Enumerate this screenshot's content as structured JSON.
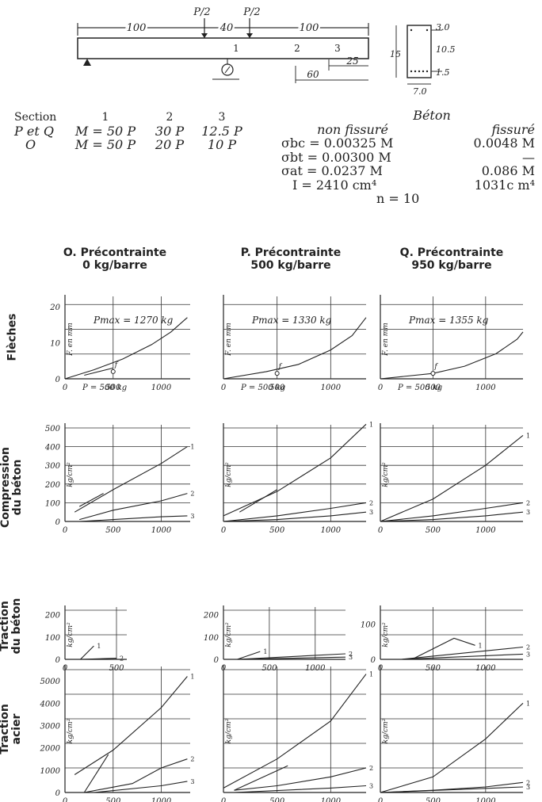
{
  "beam": {
    "dims": [
      "100",
      "40",
      "100"
    ],
    "loads": [
      "P/2",
      "P/2"
    ],
    "sections": [
      "1",
      "2",
      "3"
    ],
    "offsets": [
      "25",
      "60"
    ],
    "xsection": {
      "height": "15",
      "width": "7.0",
      "dims": [
        "3.0",
        "10.5",
        "1.5"
      ]
    }
  },
  "section_table": {
    "header": [
      "Section",
      "1",
      "2",
      "3"
    ],
    "rows": [
      [
        "P et Q",
        "M = 50 P",
        "30 P",
        "12.5 P"
      ],
      [
        "O",
        "M = 50 P",
        "20 P",
        "10 P"
      ]
    ]
  },
  "beton": {
    "title": "Béton",
    "col_a": "non fissuré",
    "col_b": "fissuré",
    "rows": [
      [
        "σbc = 0.00325 M",
        "0.0048 M"
      ],
      [
        "σbt = 0.00300 M",
        "—"
      ],
      [
        "σat = 0.0237 M",
        "0.086 M"
      ],
      [
        "I = 2410 cm⁴",
        "1031c m⁴"
      ]
    ],
    "n": "n = 10"
  },
  "columns": [
    {
      "title": "O. Précontrainte",
      "sub": "0 kg/barre"
    },
    {
      "title": "P. Précontrainte",
      "sub": "500 kg/barre"
    },
    {
      "title": "Q. Précontrainte",
      "sub": "950 kg/barre"
    }
  ],
  "row_labels": [
    "Flèches",
    "Compression du béton",
    "Traction du béton",
    "Traction acier"
  ],
  "chart_data": [
    {
      "type": "line",
      "group": "Flèches",
      "panels": [
        {
          "annotation": "Pmax = 1270 kg",
          "ylabel": "F. en mm",
          "xlabel": "P = 500 kg",
          "point_label": "f",
          "yticks": [
            "0",
            "10",
            "20"
          ],
          "xticks": [
            "0",
            "500",
            "1000"
          ],
          "xlim": [
            0,
            1300
          ],
          "ylim": [
            0,
            22
          ],
          "series": [
            {
              "name": "",
              "x": [
                0,
                300,
                600,
                900,
                1100,
                1270
              ],
              "y": [
                0,
                2.5,
                5.5,
                9.5,
                13,
                17
              ]
            },
            {
              "name": "",
              "x": [
                200,
                500
              ],
              "y": [
                1,
                3
              ]
            }
          ]
        },
        {
          "annotation": "Pmax = 1330 kg",
          "ylabel": "F. en mm",
          "xlabel": "P = 500 kg",
          "point_label": "f",
          "yticks": [],
          "xticks": [
            "0",
            "500",
            "1000"
          ],
          "xlim": [
            0,
            1330
          ],
          "ylim": [
            0,
            22
          ],
          "series": [
            {
              "name": "",
              "x": [
                0,
                400,
                700,
                1000,
                1200,
                1330
              ],
              "y": [
                0,
                2,
                4,
                8,
                12,
                17
              ]
            }
          ]
        },
        {
          "annotation": "Pmax = 1355 kg",
          "ylabel": "F. en mm",
          "xlabel": "P = 500 kg",
          "point_label": "f",
          "yticks": [],
          "xticks": [
            "0",
            "500",
            "1000"
          ],
          "xlim": [
            0,
            1355
          ],
          "ylim": [
            0,
            22
          ],
          "series": [
            {
              "name": "",
              "x": [
                0,
                500,
                800,
                1100,
                1300,
                1355
              ],
              "y": [
                0,
                1.5,
                3.5,
                7,
                11,
                13
              ]
            }
          ]
        }
      ]
    },
    {
      "type": "line",
      "group": "Compression du béton",
      "panels": [
        {
          "ylabel": "kg/cm²",
          "yticks": [
            "0",
            "100",
            "200",
            "300",
            "400",
            "500"
          ],
          "xticks": [
            "0",
            "500",
            "1000"
          ],
          "xlim": [
            0,
            1300
          ],
          "ylim": [
            0,
            500
          ],
          "series": [
            {
              "name": "1",
              "x": [
                100,
                500,
                1000,
                1270
              ],
              "y": [
                50,
                170,
                310,
                400
              ]
            },
            {
              "name": "2",
              "x": [
                150,
                500,
                1000,
                1270
              ],
              "y": [
                10,
                60,
                110,
                150
              ]
            },
            {
              "name": "3",
              "x": [
                150,
                500,
                1000,
                1270
              ],
              "y": [
                0,
                10,
                25,
                30
              ]
            },
            {
              "name": "",
              "x": [
                150,
                400
              ],
              "y": [
                80,
                150
              ]
            }
          ]
        },
        {
          "ylabel": "kg/cm²",
          "yticks": [],
          "xticks": [
            "0",
            "500",
            "1000"
          ],
          "xlim": [
            0,
            1330
          ],
          "ylim": [
            0,
            500
          ],
          "series": [
            {
              "name": "1",
              "x": [
                0,
                500,
                1000,
                1330
              ],
              "y": [
                30,
                160,
                340,
                520
              ]
            },
            {
              "name": "2",
              "x": [
                0,
                500,
                1000,
                1330
              ],
              "y": [
                0,
                30,
                70,
                100
              ]
            },
            {
              "name": "3",
              "x": [
                0,
                500,
                1000,
                1330
              ],
              "y": [
                0,
                10,
                30,
                50
              ]
            },
            {
              "name": "",
              "x": [
                150,
                500
              ],
              "y": [
                50,
                170
              ]
            }
          ]
        },
        {
          "ylabel": "kg/cm²",
          "yticks": [],
          "xticks": [
            "0",
            "500",
            "1000"
          ],
          "xlim": [
            0,
            1355
          ],
          "ylim": [
            0,
            500
          ],
          "series": [
            {
              "name": "1",
              "x": [
                0,
                500,
                1000,
                1355
              ],
              "y": [
                0,
                120,
                300,
                460
              ]
            },
            {
              "name": "2",
              "x": [
                0,
                500,
                1000,
                1355
              ],
              "y": [
                0,
                30,
                70,
                100
              ]
            },
            {
              "name": "3",
              "x": [
                0,
                500,
                1000,
                1355
              ],
              "y": [
                0,
                10,
                30,
                50
              ]
            }
          ]
        }
      ]
    },
    {
      "type": "line",
      "group": "Traction du béton",
      "panels": [
        {
          "ylabel": "kg/cm²",
          "yticks": [
            "0",
            "100",
            "200"
          ],
          "xticks": [
            "0",
            "500"
          ],
          "xlim": [
            0,
            600
          ],
          "ylim": [
            0,
            220
          ],
          "series": [
            {
              "name": "1",
              "x": [
                150,
                280
              ],
              "y": [
                0,
                60
              ]
            },
            {
              "name": "2",
              "x": [
                150,
                500
              ],
              "y": [
                0,
                5
              ]
            }
          ]
        },
        {
          "ylabel": "kg/cm²",
          "yticks": [
            "0",
            "100",
            "200"
          ],
          "xticks": [
            "0",
            "500",
            "1000"
          ],
          "xlim": [
            0,
            1330
          ],
          "ylim": [
            0,
            220
          ],
          "series": [
            {
              "name": "1",
              "x": [
                150,
                400
              ],
              "y": [
                0,
                35
              ]
            },
            {
              "name": "2",
              "x": [
                150,
                1330
              ],
              "y": [
                0,
                25
              ]
            },
            {
              "name": "3",
              "x": [
                150,
                1330
              ],
              "y": [
                0,
                10
              ]
            }
          ]
        },
        {
          "ylabel": "kg/cm²",
          "yticks": [
            "0",
            "100"
          ],
          "xticks": [
            "0",
            "500",
            "1000"
          ],
          "xlim": [
            0,
            1355
          ],
          "ylim": [
            0,
            140
          ],
          "series": [
            {
              "name": "1",
              "x": [
                300,
                700,
                900
              ],
              "y": [
                0,
                60,
                40
              ]
            },
            {
              "name": "2",
              "x": [
                200,
                1355
              ],
              "y": [
                0,
                35
              ]
            },
            {
              "name": "3",
              "x": [
                200,
                1355
              ],
              "y": [
                0,
                15
              ]
            }
          ]
        }
      ]
    },
    {
      "type": "line",
      "group": "Traction acier",
      "panels": [
        {
          "ylabel": "kg/cm²",
          "yticks": [
            "0",
            "1000",
            "2000",
            "3000",
            "4000",
            "5000"
          ],
          "xticks": [
            "0",
            "500",
            "1000"
          ],
          "xlim": [
            0,
            1300
          ],
          "ylim": [
            0,
            5500
          ],
          "series": [
            {
              "name": "1",
              "x": [
                100,
                500,
                1000,
                1270
              ],
              "y": [
                800,
                1900,
                3800,
                5200
              ]
            },
            {
              "name": "2",
              "x": [
                200,
                700,
                1000,
                1270
              ],
              "y": [
                0,
                400,
                1100,
                1500
              ]
            },
            {
              "name": "3",
              "x": [
                300,
                1000,
                1270
              ],
              "y": [
                0,
                300,
                500
              ]
            },
            {
              "name": "",
              "x": [
                200,
                450
              ],
              "y": [
                0,
                1700
              ]
            }
          ]
        },
        {
          "ylabel": "kg/cm²",
          "yticks": [],
          "xticks": [
            "0",
            "500",
            "1000"
          ],
          "xlim": [
            0,
            1330
          ],
          "ylim": [
            0,
            5500
          ],
          "series": [
            {
              "name": "1",
              "x": [
                0,
                500,
                1000,
                1330
              ],
              "y": [
                200,
                1500,
                3200,
                5300
              ]
            },
            {
              "name": "2",
              "x": [
                100,
                500,
                1000,
                1330
              ],
              "y": [
                100,
                300,
                700,
                1100
              ]
            },
            {
              "name": "3",
              "x": [
                100,
                1000,
                1330
              ],
              "y": [
                0,
                200,
                300
              ]
            },
            {
              "name": "",
              "x": [
                100,
                600
              ],
              "y": [
                100,
                1200
              ]
            }
          ]
        },
        {
          "ylabel": "kg/cm²",
          "yticks": [],
          "xticks": [
            "0",
            "500",
            "1000"
          ],
          "xlim": [
            0,
            1355
          ],
          "ylim": [
            0,
            5500
          ],
          "series": [
            {
              "name": "1",
              "x": [
                0,
                500,
                1000,
                1355
              ],
              "y": [
                0,
                700,
                2400,
                4000
              ]
            },
            {
              "name": "2",
              "x": [
                0,
                500,
                1000,
                1355
              ],
              "y": [
                0,
                100,
                250,
                450
              ]
            },
            {
              "name": "3",
              "x": [
                0,
                1355
              ],
              "y": [
                0,
                250
              ]
            }
          ]
        }
      ]
    }
  ]
}
